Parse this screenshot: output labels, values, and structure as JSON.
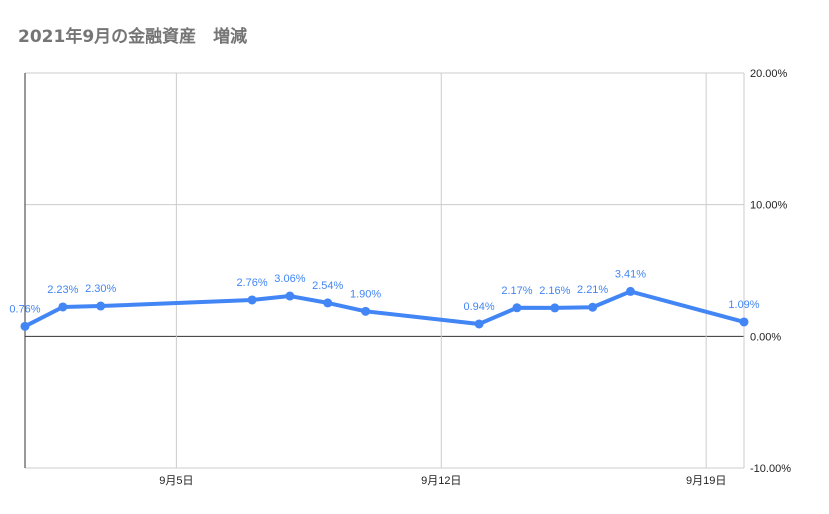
{
  "chart_data": {
    "type": "line",
    "title": "2021年9月の金融資産　増減",
    "x_start": "2021-09-01",
    "x_end": "2021-09-20",
    "x_ticks": [
      {
        "date": "2021-09-05",
        "label": "9月5日"
      },
      {
        "date": "2021-09-12",
        "label": "9月12日"
      },
      {
        "date": "2021-09-19",
        "label": "9月19日"
      }
    ],
    "ylim": [
      -0.1,
      0.2
    ],
    "y_ticks": [
      {
        "value": 0.2,
        "label": "20.00%"
      },
      {
        "value": 0.1,
        "label": "10.00%"
      },
      {
        "value": 0.0,
        "label": "0.00%"
      },
      {
        "value": -0.1,
        "label": "-10.00%"
      }
    ],
    "y_axis_side": "right",
    "grid": true,
    "series": [
      {
        "color": "#4285f4",
        "points": [
          {
            "date": "2021-09-01",
            "value": 0.0076,
            "label": "0.76%"
          },
          {
            "date": "2021-09-02",
            "value": 0.0223,
            "label": "2.23%"
          },
          {
            "date": "2021-09-03",
            "value": 0.023,
            "label": "2.30%"
          },
          {
            "date": "2021-09-07",
            "value": 0.0276,
            "label": "2.76%"
          },
          {
            "date": "2021-09-08",
            "value": 0.0306,
            "label": "3.06%"
          },
          {
            "date": "2021-09-09",
            "value": 0.0254,
            "label": "2.54%"
          },
          {
            "date": "2021-09-10",
            "value": 0.019,
            "label": "1.90%"
          },
          {
            "date": "2021-09-13",
            "value": 0.0094,
            "label": "0.94%"
          },
          {
            "date": "2021-09-14",
            "value": 0.0217,
            "label": "2.17%"
          },
          {
            "date": "2021-09-15",
            "value": 0.0216,
            "label": "2.16%"
          },
          {
            "date": "2021-09-16",
            "value": 0.0221,
            "label": "2.21%"
          },
          {
            "date": "2021-09-17",
            "value": 0.0341,
            "label": "3.41%"
          },
          {
            "date": "2021-09-20",
            "value": 0.0109,
            "label": "1.09%"
          }
        ]
      }
    ]
  }
}
